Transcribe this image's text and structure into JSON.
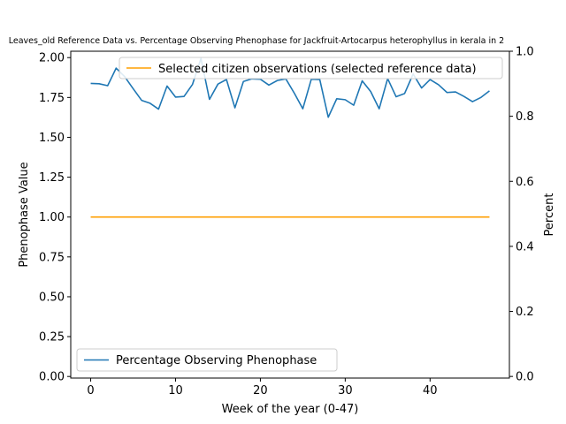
{
  "chart_data": {
    "type": "line",
    "title": "Leaves_old Reference Data vs. Percentage Observing Phenophase for Jackfruit-Artocarpus heterophyllus in kerala in 2",
    "xlabel": "Week of the year (0-47)",
    "ylabel_left": "Phenophase Value",
    "ylabel_right": "Percent",
    "xlim": [
      -2.35,
      49.35
    ],
    "ylim_left": [
      -0.01,
      2.04
    ],
    "ylim_right": [
      -0.005,
      1.0
    ],
    "x_ticks": [
      0,
      10,
      20,
      30,
      40
    ],
    "y_ticks_left": [
      "0.00",
      "0.25",
      "0.50",
      "0.75",
      "1.00",
      "1.25",
      "1.50",
      "1.75",
      "2.00"
    ],
    "y_ticks_right": [
      "0.0",
      "0.2",
      "0.4",
      "0.6",
      "0.8",
      "1.0"
    ],
    "grid": false,
    "series": [
      {
        "name": "Selected citizen observations (selected reference data)",
        "axis": "left",
        "color": "#ff9f00",
        "x": [
          0,
          47
        ],
        "y": [
          1.0,
          1.0
        ],
        "legend_position": "upper-right"
      },
      {
        "name": "Percentage Observing Phenophase",
        "axis": "right",
        "color": "#1f77b4",
        "x": [
          0,
          1,
          2,
          3,
          4,
          5,
          6,
          7,
          8,
          9,
          10,
          11,
          12,
          13,
          14,
          15,
          16,
          17,
          18,
          19,
          20,
          21,
          22,
          23,
          24,
          25,
          26,
          27,
          28,
          29,
          30,
          31,
          32,
          33,
          34,
          35,
          36,
          37,
          38,
          39,
          40,
          41,
          42,
          43,
          44,
          45,
          46,
          47
        ],
        "y": [
          0.901,
          0.9,
          0.894,
          0.948,
          0.922,
          0.885,
          0.849,
          0.84,
          0.822,
          0.893,
          0.859,
          0.861,
          0.898,
          0.978,
          0.852,
          0.899,
          0.913,
          0.826,
          0.907,
          0.915,
          0.914,
          0.896,
          0.91,
          0.915,
          0.871,
          0.823,
          0.914,
          0.913,
          0.797,
          0.854,
          0.851,
          0.834,
          0.909,
          0.876,
          0.823,
          0.916,
          0.86,
          0.87,
          0.93,
          0.887,
          0.913,
          0.897,
          0.873,
          0.875,
          0.861,
          0.845,
          0.858,
          0.878
        ],
        "legend_position": "lower-left"
      }
    ]
  }
}
